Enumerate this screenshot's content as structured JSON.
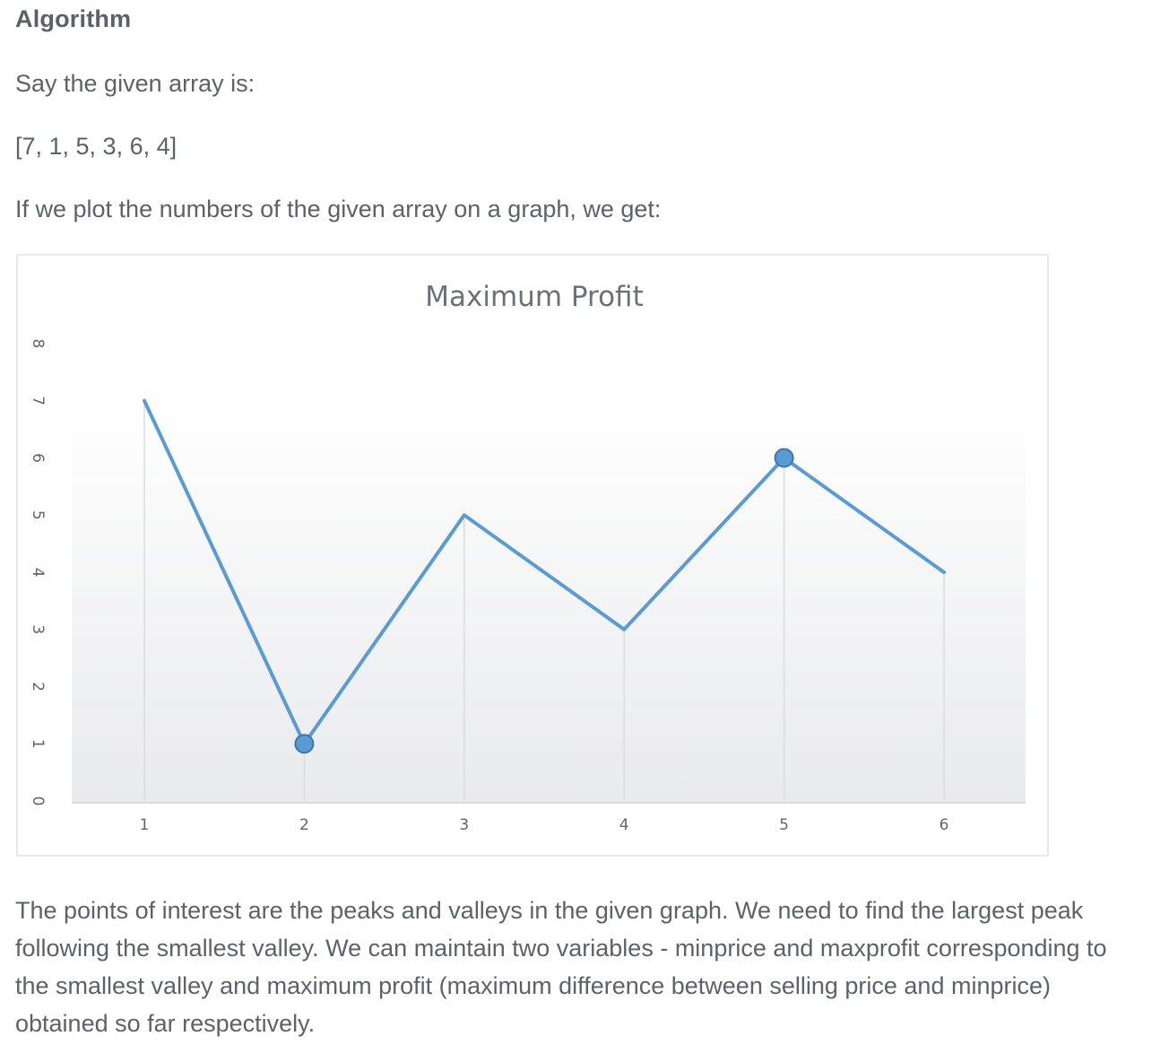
{
  "heading": "Algorithm",
  "intro_text": "Say the given array is:",
  "array_text": "[7, 1, 5, 3, 6, 4]",
  "plot_text": "If we plot the numbers of the given array on a graph, we get:",
  "explanation": "The points of interest are the peaks and valleys in the given graph. We need to find the largest peak following the smallest valley. We can maintain two variables - minprice and maxprofit corresponding to the smallest valley and maximum profit (maximum difference between selling price and minprice) obtained so far respectively.",
  "chart_data": {
    "type": "line",
    "title": "Maximum Profit",
    "x": [
      1,
      2,
      3,
      4,
      5,
      6
    ],
    "series": [
      {
        "values": [
          7,
          1,
          5,
          3,
          6,
          4
        ],
        "color": "#5b9bd5"
      }
    ],
    "highlighted_points": [
      {
        "x": 2,
        "y": 1
      },
      {
        "x": 5,
        "y": 6
      }
    ],
    "ylim": [
      0,
      8
    ],
    "y_ticks": [
      0,
      1,
      2,
      3,
      4,
      5,
      6,
      7,
      8
    ],
    "xlim": [
      1,
      6
    ],
    "x_ticks": [
      1,
      2,
      3,
      4,
      5,
      6
    ],
    "xlabel": "",
    "ylabel": "",
    "drop_lines": true,
    "y_tick_labels_rotated": true,
    "grid": false,
    "legend": "none"
  }
}
